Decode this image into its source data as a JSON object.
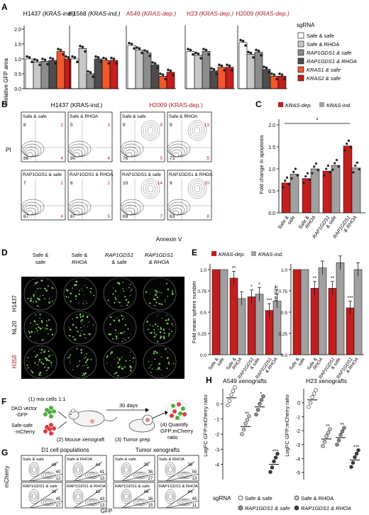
{
  "colors": {
    "dep": "#c41e1e",
    "ind": "#a0a0a0",
    "safe": "#ffffff",
    "rhoa": "#c8c8c8",
    "rap": "#8c8c8c",
    "raprhoa": "#4d4d4d",
    "kras1": "#f05a2b",
    "kras2": "#c41e1e"
  },
  "panelA": {
    "letter": "A",
    "ylabel": "Relative GFP area",
    "yticks": [
      "0.0",
      "0.5",
      "1.0",
      "1.5",
      "2.0"
    ],
    "legend_title": "sgRNA",
    "legend": [
      "Safe & safe",
      "Safe & RHOA",
      "RAP1GDS1 & safe",
      "RAP1GDS1 & RHOA",
      "KRAS1 & safe",
      "KRAS2 & safe"
    ],
    "titles": [
      {
        "name": "H1437",
        "tag": " (KRAS-ind.)",
        "dep": false
      },
      {
        "name": "H1568",
        "tag": " (KRAS-ind.)",
        "dep": false
      },
      {
        "name": "A549",
        "tag": " (KRAS-dep.)",
        "dep": true
      },
      {
        "name": "H23",
        "tag": " (KRAS-dep.)",
        "dep": true
      },
      {
        "name": "H2009",
        "tag": " (KRAS-dep.)",
        "dep": true
      }
    ]
  },
  "chart_data": [
    {
      "type": "bar",
      "panel": "A",
      "ylabel": "Relative GFP area",
      "ylim": [
        0,
        2.1
      ],
      "categories": [
        "Safe & safe",
        "Safe & RHOA",
        "RAP1GDS1 & safe",
        "RAP1GDS1 & RHOA",
        "KRAS1 & safe",
        "KRAS2 & safe"
      ],
      "series": [
        {
          "name": "H1437",
          "values": [
            1.0,
            0.9,
            0.92,
            0.95,
            1.25,
            1.0
          ]
        },
        {
          "name": "H1568",
          "values": [
            1.0,
            1.35,
            0.5,
            1.0,
            0.95,
            0.95
          ]
        },
        {
          "name": "A549",
          "values": [
            1.45,
            1.3,
            1.2,
            0.8,
            0.42,
            0.55
          ]
        },
        {
          "name": "H23",
          "values": [
            1.25,
            1.12,
            1.25,
            0.6,
            0.72,
            0.72
          ]
        },
        {
          "name": "H2009",
          "values": [
            1.55,
            1.15,
            1.22,
            0.65,
            0.42,
            0.42
          ]
        }
      ]
    },
    {
      "type": "bar",
      "panel": "C",
      "ylabel": "Fold change in apoptosis",
      "ylim": [
        0,
        2
      ],
      "categories": [
        "Safe & safe",
        "Safe & RHOA",
        "RAP1GDS1 & safe",
        "RAP1GDS1 & RHOA"
      ],
      "series": [
        {
          "name": "KRAS-dep.",
          "values": [
            0.68,
            0.78,
            0.95,
            1.52
          ]
        },
        {
          "name": "KRAS-ind.",
          "values": [
            0.88,
            1.0,
            1.08,
            1.02
          ]
        }
      ]
    },
    {
      "type": "bar",
      "panel": "E-left",
      "ylabel": "Fold mean sphere number",
      "ylim": [
        0,
        1.25
      ],
      "categories": [
        "Safe & safe",
        "Safe & RHOA",
        "RAP1GDS1 & safe",
        "RAP1GDS1 & RHOA"
      ],
      "series": [
        {
          "name": "KRAS-dep.",
          "values": [
            1.0,
            0.9,
            0.68,
            0.52
          ]
        },
        {
          "name": "KRAS-ind.",
          "values": [
            1.0,
            0.66,
            0.71,
            0.63
          ]
        }
      ]
    },
    {
      "type": "bar",
      "panel": "E-right",
      "ylabel": "Fold mean sphere size",
      "ylim": [
        0,
        1.25
      ],
      "categories": [
        "Safe & safe",
        "Safe & RHOA",
        "RAP1GDS1 & safe",
        "RAP1GDS1 & RHOA"
      ],
      "series": [
        {
          "name": "KRAS-dep.",
          "values": [
            1.0,
            0.78,
            0.78,
            0.55
          ]
        },
        {
          "name": "KRAS-ind.",
          "values": [
            1.0,
            1.02,
            1.08,
            1.0
          ]
        }
      ]
    },
    {
      "type": "scatter",
      "panel": "H-left",
      "title": "A549 xenografts",
      "ylabel": "LogFC GFP:mCherry ratio",
      "yticks": [
        "0",
        "-1",
        "-2",
        "-3",
        "-4"
      ],
      "ylim": [
        -5,
        1
      ],
      "categories": [
        "Safe & safe",
        "Safe & RHOA",
        "RAP1GDS1 & safe",
        "RAP1GDS1 & RHOA"
      ],
      "medians": [
        0.4,
        -1.5,
        -0.2,
        -4.0
      ]
    },
    {
      "type": "scatter",
      "panel": "H-right",
      "title": "H23 xenografts",
      "ylabel": "LogFC GFP:mCherry ratio",
      "yticks": [
        "0",
        "-1",
        "-2",
        "-3",
        "-4",
        "-5"
      ],
      "ylim": [
        -5.5,
        1
      ],
      "categories": [
        "Safe & safe",
        "Safe & RHOA",
        "RAP1GDS1 & safe",
        "RAP1GDS1 & RHOA"
      ],
      "medians": [
        0.2,
        -2.6,
        -2.5,
        -4.1
      ]
    }
  ],
  "panelB": {
    "letter": "B",
    "title_ind": "H1437 (KRAS-ind.)",
    "title_dep": "H2009 (KRAS-dep.)",
    "ylabel": "PI",
    "xlabel": "Annexin V",
    "plots": [
      {
        "label": "Safe & safe",
        "q": [
          "8",
          "2",
          "86",
          "4"
        ]
      },
      {
        "label": "Safe & RHOA",
        "q": [
          "5",
          "1",
          "90",
          "4"
        ]
      },
      {
        "label": "Safe & safe",
        "q": [
          "9",
          "9",
          "76",
          "5"
        ]
      },
      {
        "label": "Safe & RHOA",
        "q": [
          "9",
          "13",
          "73",
          "5"
        ]
      },
      {
        "label": "RAP1GDS1 & safe",
        "q": [
          "7",
          "2",
          "87",
          "4"
        ]
      },
      {
        "label": "RAP1GDS1 & RHOA",
        "q": [
          "6",
          "2",
          "87",
          "5"
        ]
      },
      {
        "label": "RAP1GDS1 & safe",
        "q": [
          "10",
          "14",
          "69",
          "7"
        ]
      },
      {
        "label": "RAP1GDS1 & RHOA",
        "q": [
          "9",
          "20",
          "63",
          "8"
        ]
      }
    ]
  },
  "panelC": {
    "letter": "C",
    "ylabel": "Fold change in apoptosis",
    "yticks": [
      "0.0",
      "0.5",
      "1.0",
      "1.5",
      "2.0"
    ],
    "legend": [
      "KRAS-dep.",
      "KRAS-ind."
    ],
    "star": "*",
    "cats": [
      "Safe &",
      "safe",
      "Safe &",
      "RHOA",
      "RAP1GDS1",
      "& safe",
      "RAP1GDS1",
      "& RHOA"
    ]
  },
  "panelD": {
    "letter": "D",
    "cols": [
      "Safe &",
      "safe",
      "Safe &",
      "RHOA",
      "RAP1GDS1",
      "& safe",
      "RAP1GDS1",
      "& RHOA"
    ],
    "rows": [
      "H1437",
      "NL20",
      "H358"
    ]
  },
  "panelE": {
    "letter": "E",
    "legend": [
      "KRAS-dep.",
      "KRAS-ind."
    ],
    "ylabel_left": "Fold mean sphere number",
    "ylabel_right": "Fold mean sphere size",
    "yticks": [
      "0.0",
      "0.25",
      "0.5",
      "0.75",
      "1.0"
    ],
    "stars_left": [
      "**",
      "*",
      "*",
      "***",
      "*"
    ],
    "stars_right": [
      "**",
      "**",
      "***"
    ],
    "cats": [
      "Safe &",
      "safe",
      "Safe &",
      "RHOA",
      "RAP1GDS1",
      "& safe",
      "RAP1GDS1",
      "& RHOA"
    ]
  },
  "panelF": {
    "letter": "F",
    "step1": "(1) mix cells 1:1",
    "dko": "DKO vector",
    "gfp": "-GFP",
    "safesafe": "Safe-safe",
    "mcherry": "-mCherry",
    "days": "30 days",
    "step2": "(2) Mouse xenograft",
    "step3": "(3) Tumor prep",
    "step4a": "(4) Quantify",
    "step4b": "GFP:mCherry",
    "step4c": "ratio"
  },
  "panelG": {
    "letter": "G",
    "title_left": "D1 cell populations",
    "title_right": "Tumor xenografts",
    "ylabel": "mCherry",
    "xlabel": "GFP",
    "plots": [
      {
        "label": "Safe & safe",
        "v": [
          "46",
          "40",
          "12"
        ]
      },
      {
        "label": "Safe & RHOA",
        "v": [
          "44",
          "41",
          "13"
        ]
      },
      {
        "label": "Safe & safe",
        "v": [
          "35",
          "36",
          "27"
        ]
      },
      {
        "label": "Safe & RHOA",
        "v": [
          "36",
          "50",
          "13"
        ]
      },
      {
        "label": "RAP1GDS1 & safe",
        "v": [
          "36",
          "45",
          "17"
        ]
      },
      {
        "label": "RAP1GDS1 & RHOA",
        "v": [
          "42",
          "43",
          "13"
        ]
      },
      {
        "label": "RAP1GDS1 & safe",
        "v": [
          "48",
          "36",
          "15"
        ]
      },
      {
        "label": "RAP1GDS1 & RHOA",
        "v": [
          "44",
          "45",
          "11"
        ]
      }
    ]
  },
  "panelH": {
    "letter": "H",
    "title_left": "A549 xenografts",
    "title_right": "H23 xenografts",
    "ylabel": "LogFC GFP:mCherry ratio",
    "stars_left": [
      "**",
      "*",
      "***"
    ],
    "stars_right": [
      "**",
      "**",
      "***"
    ],
    "legend_title": "sgRNA",
    "legend": [
      "Safe & safe",
      "Safe & RHOA",
      "RAP1GDS1 & safe",
      "RAP1GDS1 & RHOA"
    ]
  }
}
